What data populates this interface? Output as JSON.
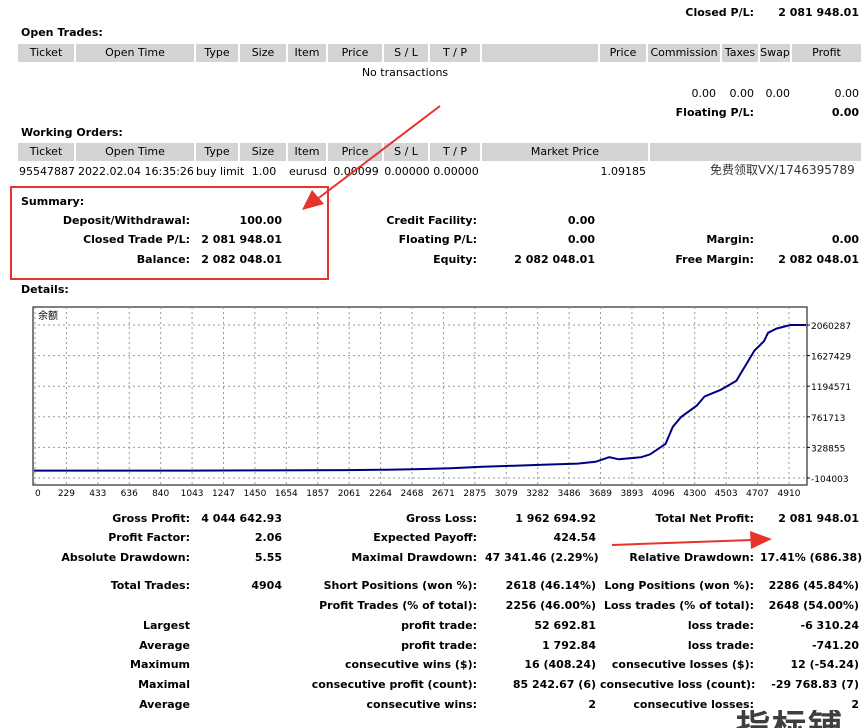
{
  "closed_pl": {
    "label": "Closed P/L:",
    "value": "2 081 948.01"
  },
  "open_trades": {
    "title": "Open Trades:",
    "headers": [
      "Ticket",
      "Open Time",
      "Type",
      "Size",
      "Item",
      "Price",
      "S / L",
      "T / P",
      "",
      "Price",
      "Commission",
      "Taxes",
      "Swap",
      "Profit"
    ],
    "empty": "No transactions",
    "totals": [
      "0.00",
      "0.00",
      "0.00",
      "0.00"
    ],
    "floating": {
      "label": "Floating P/L:",
      "value": "0.00"
    }
  },
  "working_orders": {
    "title": "Working Orders:",
    "headers": [
      "Ticket",
      "Open Time",
      "Type",
      "Size",
      "Item",
      "Price",
      "S / L",
      "T / P",
      "Market Price",
      ""
    ],
    "row": [
      "95547887",
      "2022.02.04 16:35:26",
      "buy limit",
      "1.00",
      "eurusd",
      "0.00099",
      "0.00000",
      "0.00000",
      "1.09185"
    ],
    "watermark": "免费领取VX/1746395789"
  },
  "summary": {
    "title": "Summary:",
    "deposit": {
      "label": "Deposit/Withdrawal:",
      "value": "100.00"
    },
    "closed": {
      "label": "Closed Trade P/L:",
      "value": "2 081 948.01"
    },
    "balance": {
      "label": "Balance:",
      "value": "2 082 048.01"
    },
    "credit": {
      "label": "Credit Facility:",
      "value": "0.00"
    },
    "floating": {
      "label": "Floating P/L:",
      "value": "0.00"
    },
    "equity": {
      "label": "Equity:",
      "value": "2 082 048.01"
    },
    "margin": {
      "label": "Margin:",
      "value": "0.00"
    },
    "free_margin": {
      "label": "Free Margin:",
      "value": "2 082 048.01"
    }
  },
  "details_title": "Details:",
  "chart_data": {
    "type": "line",
    "legend": "余额",
    "x_ticks": [
      "0",
      "229",
      "433",
      "636",
      "840",
      "1043",
      "1247",
      "1450",
      "1654",
      "1857",
      "2061",
      "2264",
      "2468",
      "2671",
      "2875",
      "3079",
      "3282",
      "3486",
      "3689",
      "3893",
      "4096",
      "4300",
      "4503",
      "4707",
      "4910"
    ],
    "y_ticks": [
      "2060287",
      "1627429",
      "1194571",
      "761713",
      "328855",
      "-104003"
    ],
    "ylim": [
      -104003,
      2060287
    ],
    "xlim": [
      0,
      4950
    ],
    "series": [
      {
        "x": [
          0,
          500,
          1000,
          1500,
          2000,
          2264,
          2468,
          2671,
          2875,
          3079,
          3282,
          3486,
          3600,
          3689,
          3750,
          3893,
          3950,
          4050,
          4096,
          4150,
          4250,
          4300,
          4400,
          4503,
          4560,
          4620,
          4680,
          4707,
          4760,
          4850,
          4950
        ],
        "values": [
          0,
          0,
          0,
          3000,
          8000,
          14000,
          22000,
          35000,
          55000,
          70000,
          85000,
          100000,
          125000,
          190000,
          160000,
          190000,
          230000,
          380000,
          620000,
          760000,
          920000,
          1050000,
          1140000,
          1270000,
          1480000,
          1700000,
          1830000,
          1950000,
          2010000,
          2060287,
          2060287
        ]
      }
    ],
    "line_color": "#000080"
  },
  "stats": {
    "gross_profit": {
      "label": "Gross Profit:",
      "value": "4 044 642.93"
    },
    "profit_factor": {
      "label": "Profit Factor:",
      "value": "2.06"
    },
    "abs_drawdown": {
      "label": "Absolute Drawdown:",
      "value": "5.55"
    },
    "total_trades": {
      "label": "Total Trades:",
      "value": "4904"
    },
    "gross_loss": {
      "label": "Gross Loss:",
      "value": "1 962 694.92"
    },
    "expected_payoff": {
      "label": "Expected Payoff:",
      "value": "424.54"
    },
    "max_drawdown": {
      "label": "Maximal Drawdown:",
      "value": "47 341.46 (2.29%)"
    },
    "short_pos": {
      "label": "Short Positions (won %):",
      "value": "2618 (46.14%)"
    },
    "profit_trades": {
      "label": "Profit Trades (% of total):",
      "value": "2256 (46.00%)"
    },
    "total_net": {
      "label": "Total Net Profit:",
      "value": "2 081 948.01"
    },
    "rel_drawdown": {
      "label": "Relative Drawdown:",
      "value": "17.41% (686.38)"
    },
    "long_pos": {
      "label": "Long Positions (won %):",
      "value": "2286 (45.84%)"
    },
    "loss_trades": {
      "label": "Loss trades (% of total):",
      "value": "2648 (54.00%)"
    },
    "rows": [
      {
        "left": "Largest",
        "mid": "profit trade:",
        "mid_val": "52 692.81",
        "right": "loss trade:",
        "right_val": "-6 310.24"
      },
      {
        "left": "Average",
        "mid": "profit trade:",
        "mid_val": "1 792.84",
        "right": "loss trade:",
        "right_val": "-741.20"
      },
      {
        "left": "Maximum",
        "mid": "consecutive wins ($):",
        "mid_val": "16 (408.24)",
        "right": "consecutive losses ($):",
        "right_val": "12 (-54.24)"
      },
      {
        "left": "Maximal",
        "mid": "consecutive profit (count):",
        "mid_val": "85 242.67 (6)",
        "right": "consecutive loss (count):",
        "right_val": "-29 768.83 (7)"
      },
      {
        "left": "Average",
        "mid": "consecutive wins:",
        "mid_val": "2",
        "right": "consecutive losses:",
        "right_val": "2"
      }
    ]
  },
  "logo_text": "指标铺",
  "colors": {
    "header_bg": "#d4d4d4",
    "annotation": "#e8322c",
    "line": "#000080"
  }
}
